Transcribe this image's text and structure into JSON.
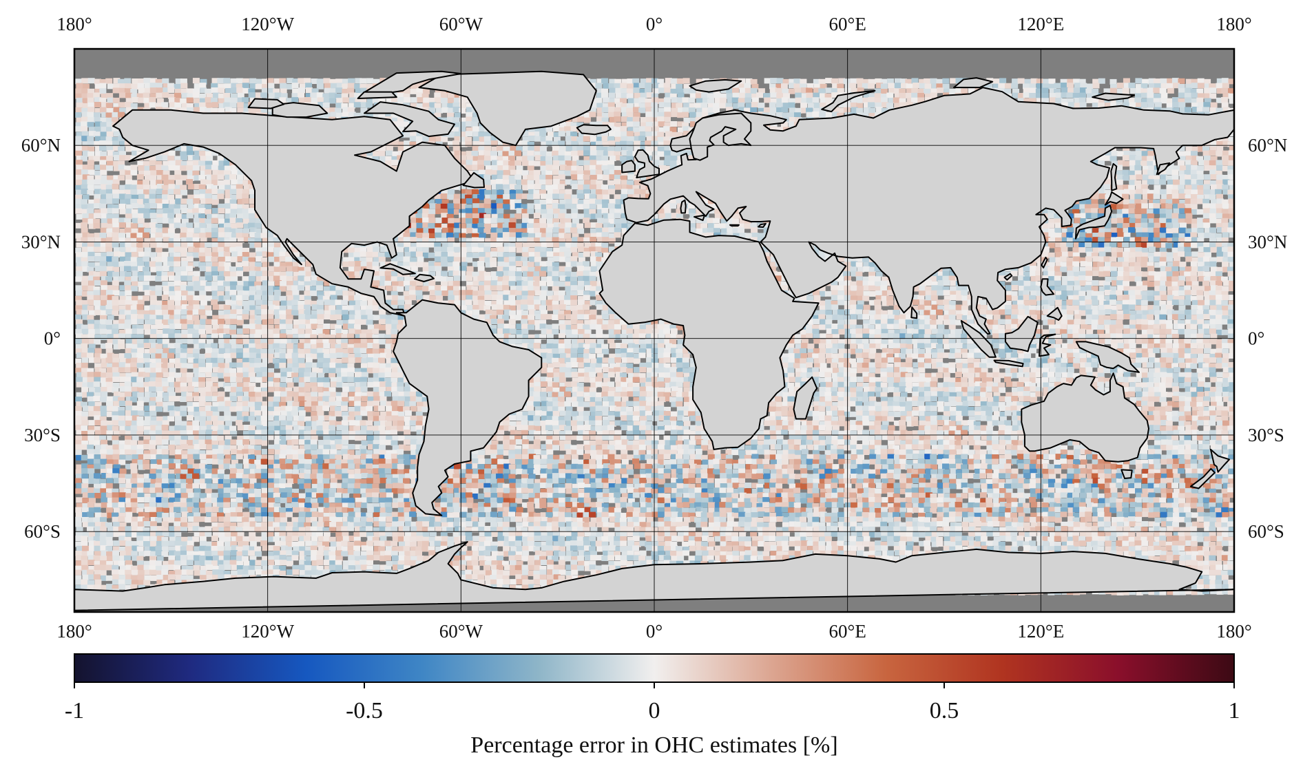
{
  "map": {
    "projection": "equirectangular",
    "lon_range": [
      -180,
      180
    ],
    "lat_range": [
      -85,
      90
    ],
    "land_color": "#d3d3d3",
    "no_data_color": "#7f7f7f",
    "coastline_color": "#000000",
    "gridlines": true,
    "lon_ticks": [
      {
        "lon": -180,
        "label": "180°"
      },
      {
        "lon": -120,
        "label": "120°W"
      },
      {
        "lon": -60,
        "label": "60°W"
      },
      {
        "lon": 0,
        "label": "0°"
      },
      {
        "lon": 60,
        "label": "60°E"
      },
      {
        "lon": 120,
        "label": "120°E"
      },
      {
        "lon": 180,
        "label": "180°"
      }
    ],
    "lat_ticks": [
      {
        "lat": 60,
        "label": "60°N"
      },
      {
        "lat": 30,
        "label": "30°N"
      },
      {
        "lat": 0,
        "label": "0°"
      },
      {
        "lat": -30,
        "label": "30°S"
      },
      {
        "lat": -60,
        "label": "60°S"
      }
    ]
  },
  "colorbar": {
    "label": "Percentage error in OHC estimates [%]",
    "min": -1,
    "max": 1,
    "ticks": [
      {
        "value": -1,
        "label": "-1"
      },
      {
        "value": -0.5,
        "label": "-0.5"
      },
      {
        "value": 0,
        "label": "0"
      },
      {
        "value": 0.5,
        "label": "0.5"
      },
      {
        "value": 1,
        "label": "1"
      }
    ],
    "colormap": [
      "#14132e",
      "#1f2a80",
      "#1658c0",
      "#3f86c5",
      "#8eb5c8",
      "#f1efee",
      "#dca692",
      "#c8653f",
      "#b03420",
      "#8a0f2b",
      "#3c0a14"
    ]
  }
}
